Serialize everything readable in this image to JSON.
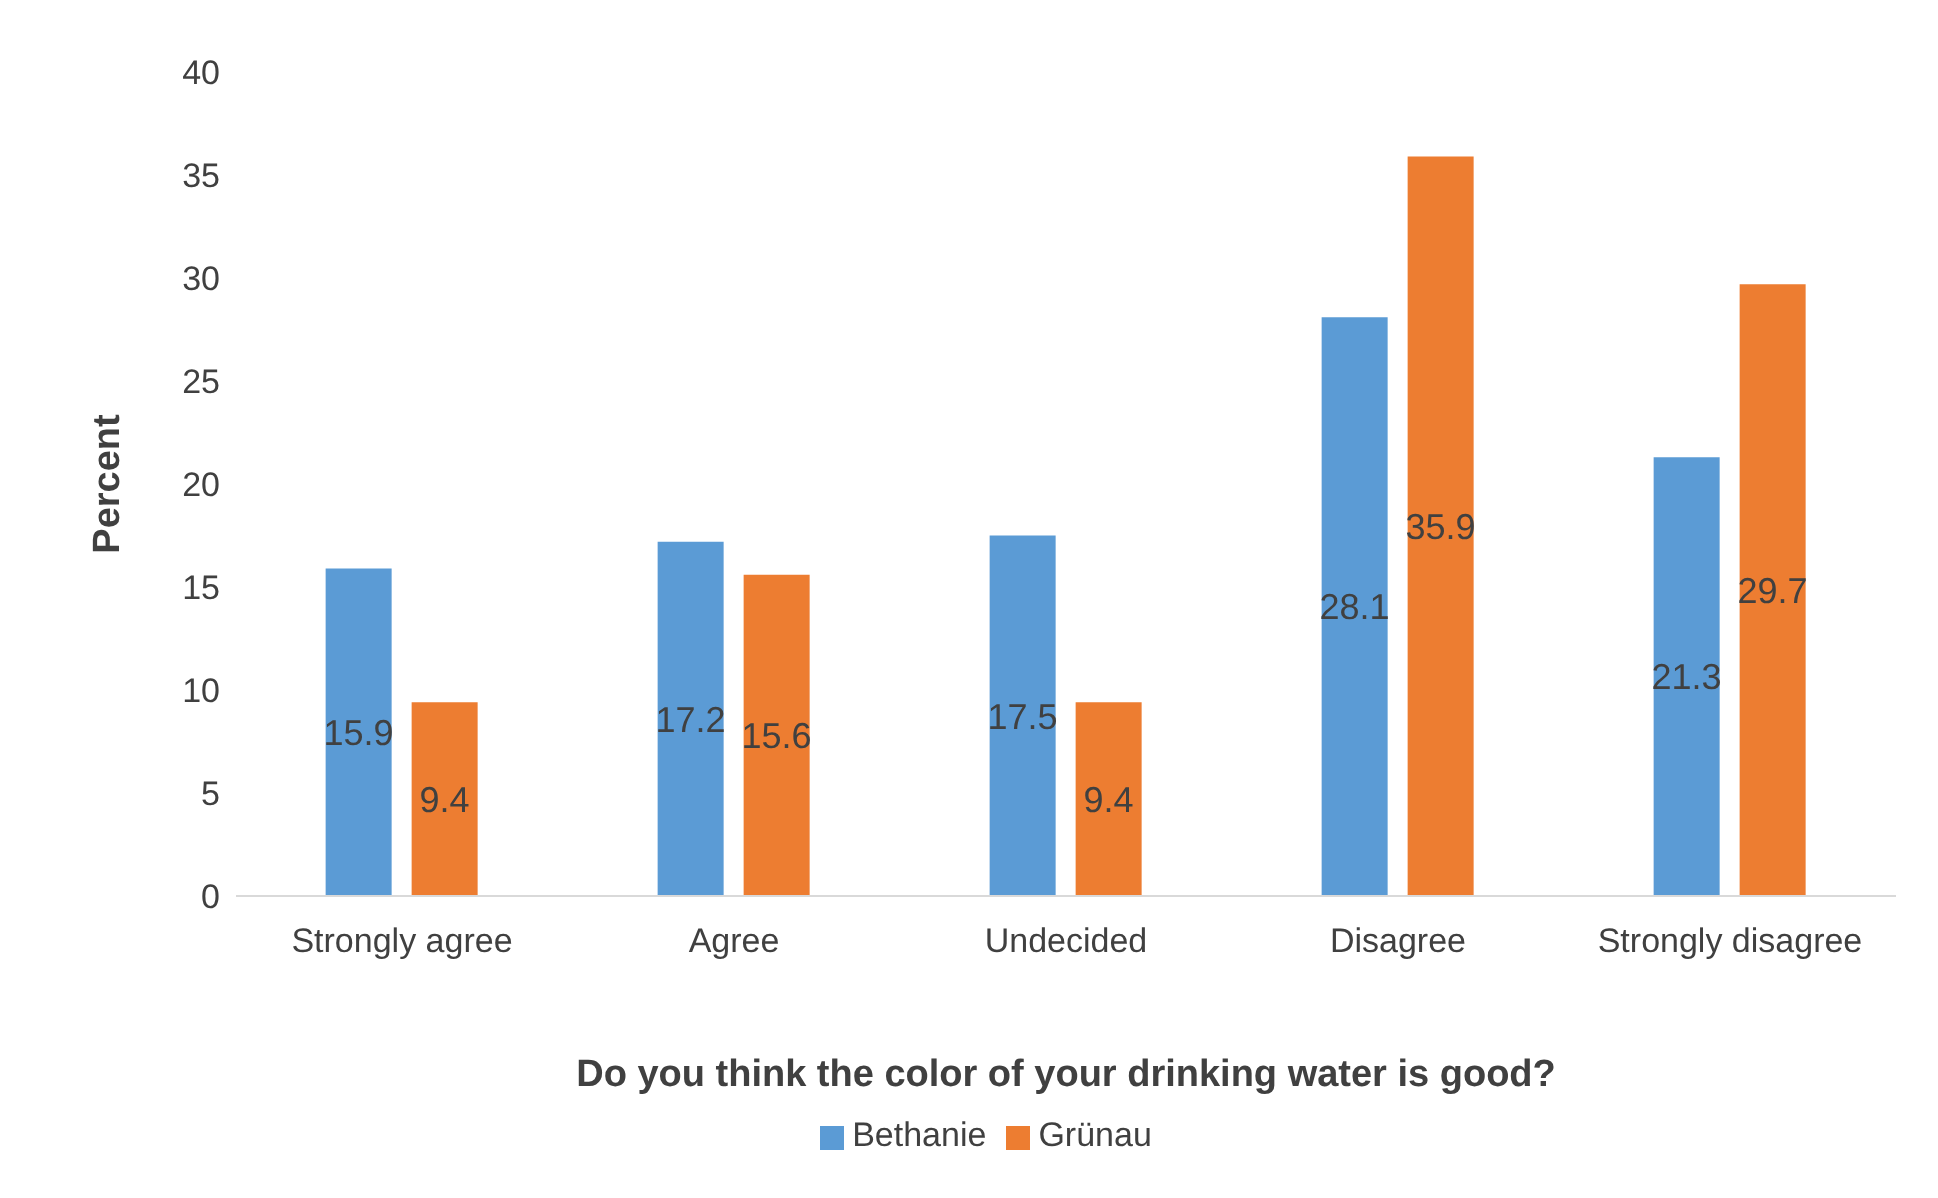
{
  "chart_data": {
    "type": "bar",
    "xlabel": "Do you think the color of your drinking water is good?",
    "ylabel": "Percent",
    "categories": [
      "Strongly agree",
      "Agree",
      "Undecided",
      "Disagree",
      "Strongly disagree"
    ],
    "series": [
      {
        "name": "Bethanie",
        "color": "#5b9bd5",
        "values": [
          15.9,
          17.2,
          17.5,
          28.1,
          21.3
        ]
      },
      {
        "name": "Grünau",
        "color": "#ed7d31",
        "values": [
          9.4,
          15.6,
          9.4,
          35.9,
          29.7
        ]
      }
    ],
    "ylim": [
      0,
      40
    ],
    "yticks": [
      0,
      5,
      10,
      15,
      20,
      25,
      30,
      35,
      40
    ],
    "data_labels": true,
    "legend": "bottom"
  }
}
